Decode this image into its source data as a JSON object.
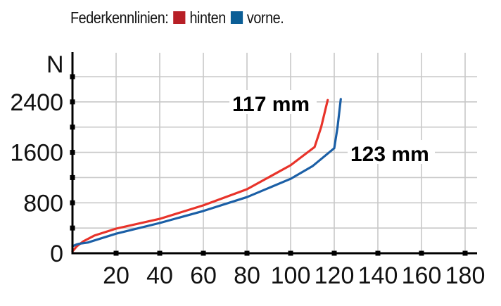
{
  "legend": {
    "title": "Federkennlinien:",
    "items": [
      {
        "label": "hinten",
        "color": "#b71f26"
      },
      {
        "label": "vorne.",
        "color": "#0b5e96"
      }
    ]
  },
  "axes": {
    "y_unit": "N",
    "y_ticks": [
      "0",
      "800",
      "1600",
      "2400"
    ],
    "x_ticks": [
      "20",
      "40",
      "60",
      "80",
      "100",
      "120",
      "140",
      "160",
      "180"
    ]
  },
  "annotations": {
    "hinten_max": "117 mm",
    "vorne_max": "123 mm"
  },
  "chart_data": {
    "type": "line",
    "title": "Federkennlinien: hinten / vorne",
    "xlabel": "mm",
    "ylabel": "N",
    "xlim": [
      0,
      185
    ],
    "ylim": [
      0,
      2800
    ],
    "x_ticks": [
      20,
      40,
      60,
      80,
      100,
      120,
      140,
      160,
      180
    ],
    "y_ticks_labeled": [
      0,
      800,
      1600,
      2400
    ],
    "y_gridlines": [
      400,
      800,
      1200,
      1600,
      2000,
      2400,
      2800
    ],
    "grid": true,
    "legend_position": "top",
    "series": [
      {
        "name": "hinten",
        "color": "#e8332a",
        "x": [
          0,
          2,
          5,
          10,
          20,
          40,
          60,
          80,
          100,
          111,
          114,
          117
        ],
        "y": [
          30,
          110,
          190,
          280,
          390,
          545,
          760,
          1015,
          1395,
          1685,
          2000,
          2430
        ]
      },
      {
        "name": "vorne",
        "color": "#1b5fa6",
        "x": [
          0,
          2,
          3,
          7,
          20,
          40,
          60,
          80,
          100,
          110,
          120,
          121.5,
          123
        ],
        "y": [
          110,
          140,
          150,
          170,
          310,
          480,
          670,
          890,
          1180,
          1380,
          1665,
          2000,
          2445
        ]
      }
    ],
    "annotations": [
      {
        "text": "117 mm",
        "series": "hinten",
        "x": 117,
        "y": 2430
      },
      {
        "text": "123 mm",
        "series": "vorne",
        "x": 123,
        "y": 1665
      }
    ]
  }
}
